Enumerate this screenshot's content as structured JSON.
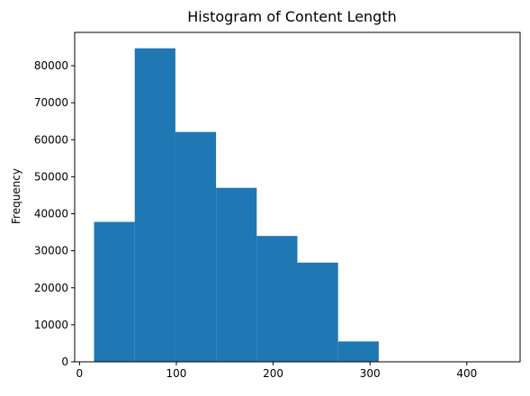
{
  "chart_data": {
    "type": "bar",
    "subtype": "histogram",
    "title": "Histogram of Content Length",
    "xlabel": "",
    "ylabel": "Frequency",
    "bins": [
      {
        "start": 15,
        "end": 57,
        "count": 37800
      },
      {
        "start": 57,
        "end": 99,
        "count": 84700
      },
      {
        "start": 99,
        "end": 141,
        "count": 62100
      },
      {
        "start": 141,
        "end": 183,
        "count": 47000
      },
      {
        "start": 183,
        "end": 225,
        "count": 34000
      },
      {
        "start": 225,
        "end": 267,
        "count": 26800
      },
      {
        "start": 267,
        "end": 309,
        "count": 5500
      },
      {
        "start": 309,
        "end": 351,
        "count": 0
      },
      {
        "start": 351,
        "end": 393,
        "count": 0
      },
      {
        "start": 393,
        "end": 435,
        "count": 0
      }
    ],
    "xlim": [
      -5,
      455
    ],
    "ylim": [
      0,
      89000
    ],
    "xticks": [
      0,
      100,
      200,
      300,
      400
    ],
    "xtick_labels": [
      "0",
      "100",
      "200",
      "300",
      "400"
    ],
    "yticks": [
      0,
      10000,
      20000,
      30000,
      40000,
      50000,
      60000,
      70000,
      80000
    ],
    "ytick_labels": [
      "0",
      "10000",
      "20000",
      "30000",
      "40000",
      "50000",
      "60000",
      "70000",
      "80000"
    ],
    "bar_color": "#1f77b4",
    "grid": false,
    "legend": "none"
  }
}
